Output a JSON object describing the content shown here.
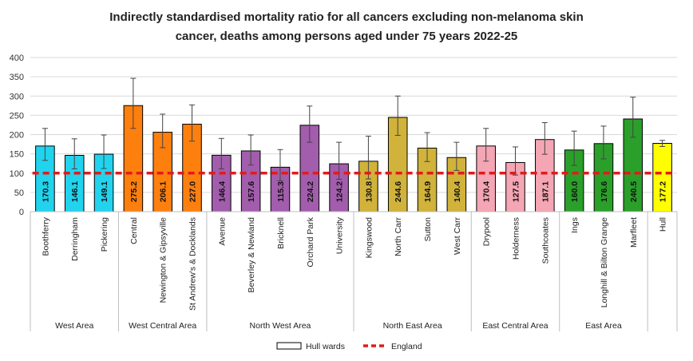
{
  "chart_data": {
    "type": "bar",
    "title_line1": "Indirectly standardised mortality ratio for all cancers excluding non-melanoma skin",
    "title_line2": "cancer, deaths among persons aged under 75 years 2022-25",
    "ylim": [
      0,
      400
    ],
    "yticks": [
      0,
      50,
      100,
      150,
      200,
      250,
      300,
      350,
      400
    ],
    "grid": true,
    "reference_value": 100,
    "bars": [
      {
        "ward": "Boothferry",
        "area": "West Area",
        "value": 170.3,
        "lower": 133,
        "upper": 216,
        "color": "#22d3ee"
      },
      {
        "ward": "Derringham",
        "area": "West Area",
        "value": 146.1,
        "lower": 111,
        "upper": 189,
        "color": "#22d3ee"
      },
      {
        "ward": "Pickering",
        "area": "West Area",
        "value": 149.1,
        "lower": 112,
        "upper": 199,
        "color": "#22d3ee"
      },
      {
        "ward": "Central",
        "area": "West Central Area",
        "value": 275.2,
        "lower": 216,
        "upper": 346,
        "color": "#fd7f0e"
      },
      {
        "ward": "Newington & Gipsyville",
        "area": "West Central Area",
        "value": 206.1,
        "lower": 166,
        "upper": 253,
        "color": "#fd7f0e"
      },
      {
        "ward": "St Andrew's & Docklands",
        "area": "West Central Area",
        "value": 227.0,
        "lower": 183,
        "upper": 277,
        "color": "#fd7f0e"
      },
      {
        "ward": "Avenue",
        "area": "North West Area",
        "value": 146.4,
        "lower": 111,
        "upper": 190,
        "color": "#a25dac"
      },
      {
        "ward": "Beverley & Newland",
        "area": "North West Area",
        "value": 157.6,
        "lower": 121,
        "upper": 199,
        "color": "#a25dac"
      },
      {
        "ward": "Bricknell",
        "area": "North West Area",
        "value": 115.3,
        "lower": 80,
        "upper": 161,
        "color": "#a25dac"
      },
      {
        "ward": "Orchard Park",
        "area": "North West Area",
        "value": 224.2,
        "lower": 180,
        "upper": 274,
        "color": "#a25dac"
      },
      {
        "ward": "University",
        "area": "North West Area",
        "value": 124.2,
        "lower": 84,
        "upper": 180,
        "color": "#a25dac"
      },
      {
        "ward": "Kingswood",
        "area": "North East Area",
        "value": 130.8,
        "lower": 85,
        "upper": 196,
        "color": "#d1b23a"
      },
      {
        "ward": "North Carr",
        "area": "North East Area",
        "value": 244.6,
        "lower": 198,
        "upper": 300,
        "color": "#d1b23a"
      },
      {
        "ward": "Sutton",
        "area": "North East Area",
        "value": 164.9,
        "lower": 130,
        "upper": 205,
        "color": "#d1b23a"
      },
      {
        "ward": "West Carr",
        "area": "North East Area",
        "value": 140.4,
        "lower": 107,
        "upper": 180,
        "color": "#d1b23a"
      },
      {
        "ward": "Drypool",
        "area": "East Central Area",
        "value": 170.4,
        "lower": 131,
        "upper": 216,
        "color": "#f4a6b4"
      },
      {
        "ward": "Holderness",
        "area": "East Central Area",
        "value": 127.5,
        "lower": 95,
        "upper": 168,
        "color": "#f4a6b4"
      },
      {
        "ward": "Southcoates",
        "area": "East Central Area",
        "value": 187.1,
        "lower": 149,
        "upper": 231,
        "color": "#f4a6b4"
      },
      {
        "ward": "Ings",
        "area": "East Area",
        "value": 160.0,
        "lower": 120,
        "upper": 209,
        "color": "#2aa02a"
      },
      {
        "ward": "Longhill & Bilton Grange",
        "area": "East Area",
        "value": 176.6,
        "lower": 137,
        "upper": 222,
        "color": "#2aa02a"
      },
      {
        "ward": "Marfleet",
        "area": "East Area",
        "value": 240.5,
        "lower": 193,
        "upper": 297,
        "color": "#2aa02a"
      },
      {
        "ward": "Hull",
        "area": "",
        "value": 177.2,
        "lower": 169,
        "upper": 185,
        "color": "#ffff00"
      }
    ],
    "areas": [
      "West Area",
      "West Central Area",
      "North West Area",
      "North East Area",
      "East Central Area",
      "East Area"
    ],
    "legend": {
      "position": "bottom",
      "items": [
        {
          "label": "Hull wards",
          "kind": "box"
        },
        {
          "label": "England",
          "kind": "dashed-line",
          "color": "#e11b1b"
        }
      ]
    }
  }
}
